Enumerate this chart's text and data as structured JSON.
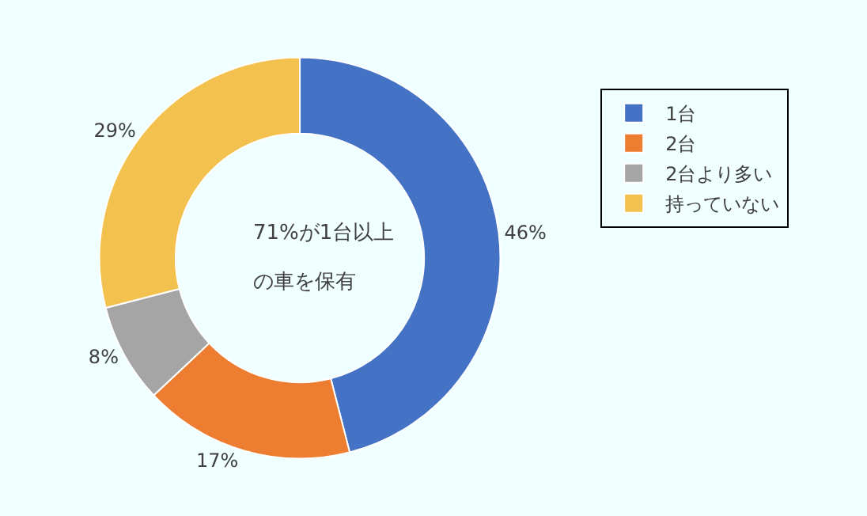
{
  "chart_data": {
    "type": "donut",
    "categories": [
      "1台",
      "2台",
      "2台より多い",
      "持っていない"
    ],
    "values": [
      46,
      17,
      8,
      29
    ],
    "value_labels": [
      "46%",
      "17%",
      "8%",
      "29%"
    ],
    "colors": [
      "#4472c4",
      "#ed7d31",
      "#a5a5a5",
      "#f2c14e"
    ],
    "annotations": [
      "71%が1台以上",
      "の車を保有"
    ],
    "legend": "right"
  }
}
